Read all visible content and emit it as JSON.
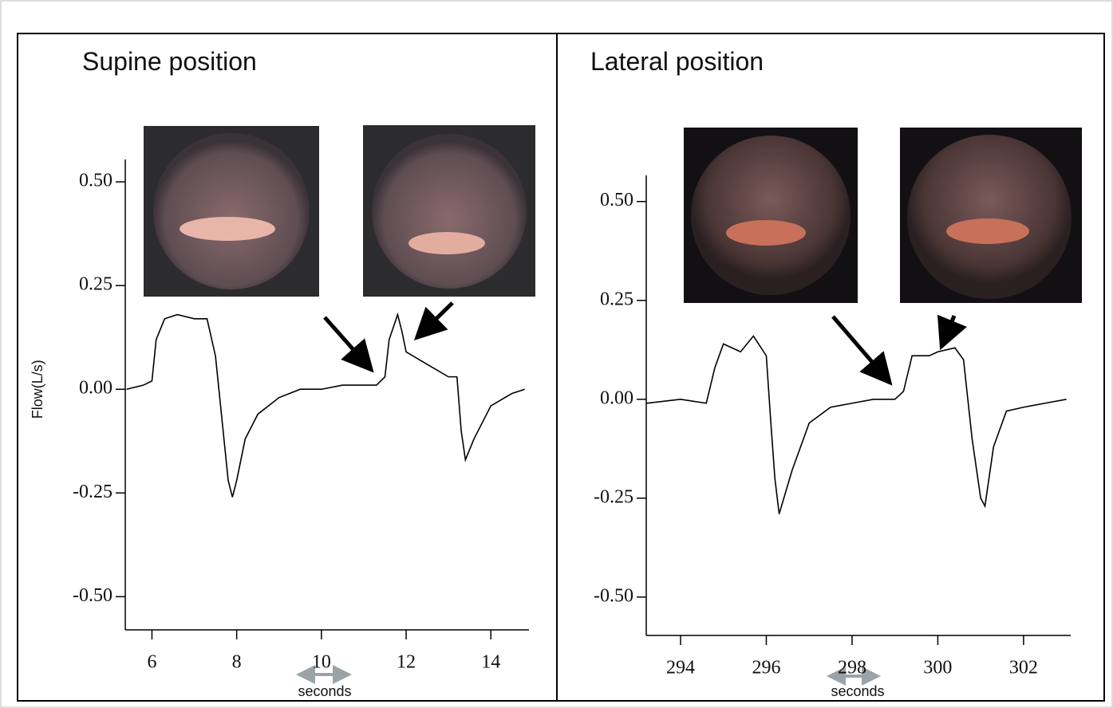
{
  "chart_data": [
    {
      "type": "line",
      "title": "Supine position",
      "ylabel": "Flow(L/s)",
      "xlabel": "seconds",
      "color": "#000000",
      "x": [
        5.4,
        5.8,
        6.0,
        6.1,
        6.3,
        6.6,
        7.0,
        7.3,
        7.5,
        7.6,
        7.7,
        7.8,
        7.9,
        8.0,
        8.2,
        8.5,
        9.0,
        9.5,
        10.0,
        10.5,
        11.0,
        11.3,
        11.5,
        11.6,
        11.8,
        11.9,
        12.0,
        12.5,
        13.0,
        13.2,
        13.3,
        13.4,
        13.6,
        14.0,
        14.5,
        14.8
      ],
      "values": [
        0.0,
        0.01,
        0.02,
        0.12,
        0.17,
        0.18,
        0.17,
        0.17,
        0.08,
        -0.02,
        -0.12,
        -0.22,
        -0.26,
        -0.22,
        -0.12,
        -0.06,
        -0.02,
        0.0,
        0.0,
        0.01,
        0.01,
        0.01,
        0.03,
        0.12,
        0.18,
        0.14,
        0.09,
        0.06,
        0.03,
        0.03,
        -0.1,
        -0.17,
        -0.12,
        -0.04,
        -0.01,
        0.0
      ],
      "xlim": [
        5.37,
        14.9
      ],
      "ylim": [
        -0.58,
        0.554
      ],
      "xticks": [
        6,
        8,
        10,
        12,
        14
      ],
      "yticks": [
        {
          "value": 0.5,
          "label": "0.50"
        },
        0.25,
        {
          "value": 0,
          "label": "0.00"
        },
        -0.25,
        {
          "value": -0.5,
          "label": "-0.50"
        }
      ]
    },
    {
      "type": "line",
      "title": "Lateral position",
      "xlabel": "seconds",
      "color": "#000000",
      "x": [
        293.2,
        294.0,
        294.6,
        294.8,
        295.0,
        295.4,
        295.7,
        296.0,
        296.1,
        296.2,
        296.3,
        296.6,
        297.0,
        297.5,
        298.0,
        298.5,
        299.0,
        299.2,
        299.4,
        299.8,
        300.0,
        300.4,
        300.6,
        300.8,
        301.0,
        301.1,
        301.3,
        301.6,
        302.0,
        302.5,
        303.0
      ],
      "values": [
        -0.01,
        0.0,
        -0.01,
        0.08,
        0.14,
        0.12,
        0.16,
        0.11,
        -0.05,
        -0.2,
        -0.29,
        -0.18,
        -0.06,
        -0.02,
        -0.01,
        0.0,
        0.0,
        0.02,
        0.11,
        0.11,
        0.12,
        0.13,
        0.1,
        -0.1,
        -0.25,
        -0.27,
        -0.12,
        -0.03,
        -0.02,
        -0.01,
        0.0
      ],
      "xlim": [
        293.2,
        303.1
      ],
      "ylim": [
        -0.597,
        0.566
      ],
      "xticks": [
        294,
        296,
        298,
        300,
        302
      ],
      "yticks": [
        {
          "value": 0.5,
          "label": "0.50"
        },
        0.25,
        {
          "value": 0,
          "label": "0.00"
        },
        -0.25,
        {
          "value": -0.5,
          "label": "-0.50"
        }
      ]
    }
  ]
}
